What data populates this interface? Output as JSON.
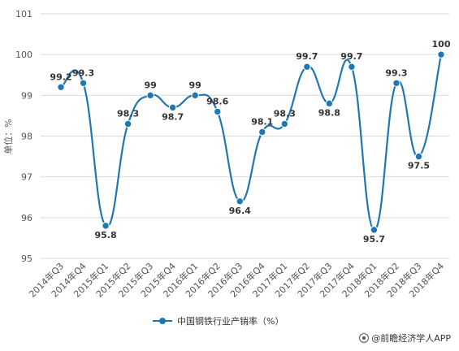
{
  "chart_data": {
    "type": "line",
    "title": "",
    "ylabel": "单位：%",
    "xlabel": "",
    "ylim": [
      95,
      101
    ],
    "yticks": [
      95,
      96,
      97,
      98,
      99,
      100,
      101
    ],
    "grid": true,
    "legend_position": "bottom",
    "categories": [
      "2014年Q3",
      "2014年Q4",
      "2015年Q1",
      "2015年Q2",
      "2015年Q3",
      "2015年Q4",
      "2016年Q1",
      "2016年Q2",
      "2016年Q3",
      "2016年Q4",
      "2017年Q1",
      "2017年Q2",
      "2017年Q3",
      "2017年Q4",
      "2018年Q1",
      "2018年Q2",
      "2018年Q3",
      "2018年Q4"
    ],
    "series": [
      {
        "name": "中国钢铁行业产销率（%）",
        "color": "#1f77b4",
        "values": [
          99.2,
          99.3,
          95.8,
          98.3,
          99,
          98.7,
          99,
          98.6,
          96.4,
          98.1,
          98.3,
          99.7,
          98.8,
          99.7,
          95.7,
          99.3,
          97.5,
          100
        ]
      }
    ]
  },
  "source": {
    "icon": "source-logo-icon",
    "text": "@前瞻经济学人APP"
  }
}
